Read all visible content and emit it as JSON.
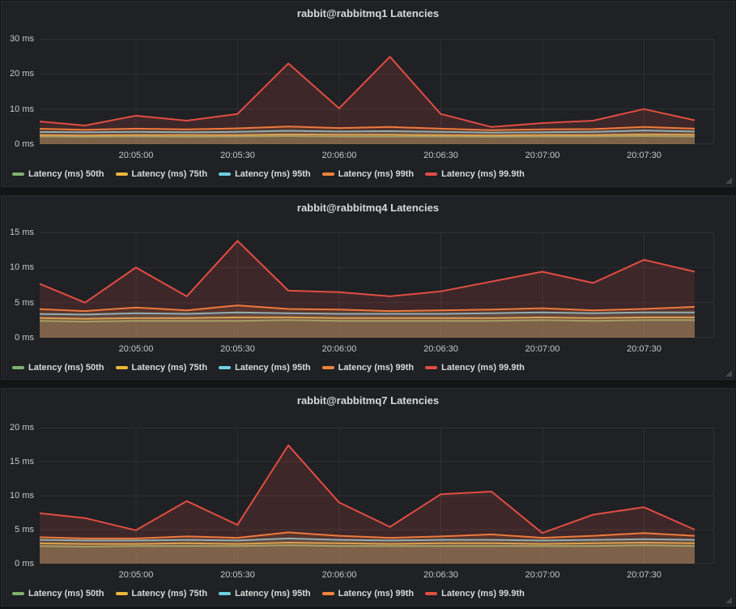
{
  "dashboard": {
    "theme_colors": {
      "page_background": "#131416",
      "panel_background": "#1f2124",
      "grid_line": "#2e3034",
      "text": "#d8d9da",
      "tick_text": "#c6c9cc"
    }
  },
  "chart_data": [
    {
      "type": "area",
      "title": "rabbit@rabbitmq1 Latencies",
      "x": [
        "20:04:30",
        "20:04:45",
        "20:05:00",
        "20:05:15",
        "20:05:30",
        "20:05:45",
        "20:06:00",
        "20:06:15",
        "20:06:30",
        "20:06:45",
        "20:07:00",
        "20:07:15",
        "20:07:30",
        "20:07:45"
      ],
      "x_tick_labels": [
        "20:05:00",
        "20:05:30",
        "20:06:00",
        "20:06:30",
        "20:07:00",
        "20:07:30"
      ],
      "ylim": [
        0,
        30
      ],
      "yticks": [
        0,
        10,
        20,
        30
      ],
      "ytick_labels": [
        "0 ms",
        "10 ms",
        "20 ms",
        "30 ms"
      ],
      "grid": true,
      "legend_position": "bottom",
      "fill_opacity": 0.16,
      "series": [
        {
          "name": "Latency (ms) 50th",
          "color": "#7EB26D",
          "values": [
            2.2,
            2.1,
            2.2,
            2.1,
            2.2,
            2.3,
            2.2,
            2.2,
            2.2,
            2.1,
            2.2,
            2.2,
            2.3,
            2.2
          ]
        },
        {
          "name": "Latency (ms) 75th",
          "color": "#EAB839",
          "values": [
            2.6,
            2.5,
            2.6,
            2.6,
            2.6,
            2.8,
            2.7,
            2.7,
            2.6,
            2.5,
            2.6,
            2.6,
            2.8,
            2.7
          ]
        },
        {
          "name": "Latency (ms) 95th",
          "color": "#6ED0E0",
          "values": [
            3.5,
            3.4,
            3.5,
            3.4,
            3.5,
            3.8,
            3.6,
            3.7,
            3.5,
            3.3,
            3.4,
            3.5,
            3.9,
            3.6
          ]
        },
        {
          "name": "Latency (ms) 99th",
          "color": "#EF843C",
          "values": [
            4.4,
            4.1,
            4.4,
            4.2,
            4.5,
            5.0,
            4.6,
            4.9,
            4.4,
            4.0,
            4.2,
            4.3,
            4.9,
            4.4
          ]
        },
        {
          "name": "Latency (ms) 99.9th",
          "color": "#E24D42",
          "values": [
            6.6,
            5.3,
            8.1,
            6.7,
            8.6,
            23.0,
            10.2,
            24.9,
            8.6,
            4.9,
            6.0,
            6.7,
            10.0,
            6.8
          ]
        }
      ]
    },
    {
      "type": "area",
      "title": "rabbit@rabbitmq4 Latencies",
      "x": [
        "20:04:30",
        "20:04:45",
        "20:05:00",
        "20:05:15",
        "20:05:30",
        "20:05:45",
        "20:06:00",
        "20:06:15",
        "20:06:30",
        "20:06:45",
        "20:07:00",
        "20:07:15",
        "20:07:30",
        "20:07:45"
      ],
      "x_tick_labels": [
        "20:05:00",
        "20:05:30",
        "20:06:00",
        "20:06:30",
        "20:07:00",
        "20:07:30"
      ],
      "ylim": [
        0,
        15
      ],
      "yticks": [
        0,
        5,
        10,
        15
      ],
      "ytick_labels": [
        "0 ms",
        "5 ms",
        "10 ms",
        "15 ms"
      ],
      "grid": true,
      "legend_position": "bottom",
      "fill_opacity": 0.16,
      "series": [
        {
          "name": "Latency (ms) 50th",
          "color": "#7EB26D",
          "values": [
            2.4,
            2.3,
            2.4,
            2.4,
            2.4,
            2.5,
            2.4,
            2.4,
            2.4,
            2.4,
            2.5,
            2.4,
            2.5,
            2.5
          ]
        },
        {
          "name": "Latency (ms) 75th",
          "color": "#EAB839",
          "values": [
            2.8,
            2.7,
            2.8,
            2.8,
            2.9,
            2.9,
            2.8,
            2.8,
            2.8,
            2.8,
            2.9,
            2.8,
            2.9,
            2.9
          ]
        },
        {
          "name": "Latency (ms) 95th",
          "color": "#6ED0E0",
          "values": [
            3.4,
            3.3,
            3.5,
            3.4,
            3.6,
            3.5,
            3.4,
            3.4,
            3.4,
            3.5,
            3.6,
            3.5,
            3.6,
            3.6
          ]
        },
        {
          "name": "Latency (ms) 99th",
          "color": "#EF843C",
          "values": [
            4.1,
            3.8,
            4.3,
            3.9,
            4.6,
            4.1,
            4.0,
            3.8,
            3.9,
            4.0,
            4.2,
            3.9,
            4.1,
            4.4
          ]
        },
        {
          "name": "Latency (ms) 99.9th",
          "color": "#E24D42",
          "values": [
            8.0,
            5.0,
            10.0,
            5.9,
            13.8,
            6.7,
            6.5,
            5.9,
            6.6,
            8.0,
            9.4,
            7.8,
            11.1,
            9.4
          ]
        }
      ]
    },
    {
      "type": "area",
      "title": "rabbit@rabbitmq7 Latencies",
      "x": [
        "20:04:30",
        "20:04:45",
        "20:05:00",
        "20:05:15",
        "20:05:30",
        "20:05:45",
        "20:06:00",
        "20:06:15",
        "20:06:30",
        "20:06:45",
        "20:07:00",
        "20:07:15",
        "20:07:30",
        "20:07:45"
      ],
      "x_tick_labels": [
        "20:05:00",
        "20:05:30",
        "20:06:00",
        "20:06:30",
        "20:07:00",
        "20:07:30"
      ],
      "ylim": [
        0,
        20
      ],
      "yticks": [
        0,
        5,
        10,
        15,
        20
      ],
      "ytick_labels": [
        "0 ms",
        "5 ms",
        "10 ms",
        "15 ms",
        "20 ms"
      ],
      "grid": true,
      "legend_position": "bottom",
      "fill_opacity": 0.16,
      "series": [
        {
          "name": "Latency (ms) 50th",
          "color": "#7EB26D",
          "values": [
            2.6,
            2.5,
            2.6,
            2.6,
            2.6,
            2.7,
            2.6,
            2.6,
            2.6,
            2.6,
            2.6,
            2.6,
            2.7,
            2.6
          ]
        },
        {
          "name": "Latency (ms) 75th",
          "color": "#EAB839",
          "values": [
            3.0,
            2.9,
            2.9,
            3.0,
            2.9,
            3.1,
            3.0,
            2.9,
            3.0,
            3.0,
            2.9,
            3.0,
            3.1,
            3.0
          ]
        },
        {
          "name": "Latency (ms) 95th",
          "color": "#6ED0E0",
          "values": [
            3.5,
            3.4,
            3.4,
            3.5,
            3.4,
            3.7,
            3.5,
            3.4,
            3.5,
            3.5,
            3.4,
            3.5,
            3.6,
            3.5
          ]
        },
        {
          "name": "Latency (ms) 99th",
          "color": "#EF843C",
          "values": [
            3.9,
            3.7,
            3.7,
            4.0,
            3.8,
            4.6,
            4.1,
            3.8,
            4.0,
            4.3,
            3.8,
            4.1,
            4.5,
            4.1
          ]
        },
        {
          "name": "Latency (ms) 99.9th",
          "color": "#E24D42",
          "values": [
            7.5,
            6.7,
            4.9,
            9.2,
            5.7,
            17.4,
            9.0,
            5.4,
            10.2,
            10.6,
            4.5,
            7.2,
            8.3,
            5.0
          ]
        }
      ]
    }
  ]
}
